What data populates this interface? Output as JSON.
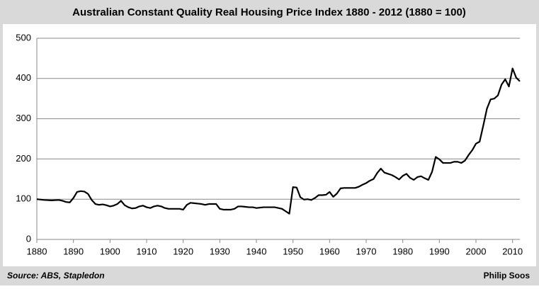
{
  "chart_data": {
    "type": "line",
    "title": "Australian Constant Quality Real Housing Price Index 1880 - 2012 (1880 = 100)",
    "source": "Source: ABS, Stapledon",
    "author": "Philip Soos",
    "xlim": [
      1880,
      2012
    ],
    "xticks": [
      1880,
      1890,
      1900,
      1910,
      1920,
      1930,
      1940,
      1950,
      1960,
      1970,
      1980,
      1990,
      2000,
      2010
    ],
    "ylim": [
      0,
      500
    ],
    "yticks": [
      0,
      100,
      200,
      300,
      400,
      500
    ],
    "grid": true,
    "x": [
      1880,
      1882,
      1884,
      1886,
      1887,
      1888,
      1889,
      1890,
      1891,
      1892,
      1893,
      1894,
      1895,
      1896,
      1897,
      1898,
      1899,
      1900,
      1901,
      1902,
      1903,
      1904,
      1905,
      1906,
      1907,
      1908,
      1909,
      1910,
      1911,
      1912,
      1913,
      1914,
      1915,
      1916,
      1917,
      1918,
      1919,
      1920,
      1921,
      1922,
      1923,
      1924,
      1925,
      1926,
      1927,
      1928,
      1929,
      1930,
      1931,
      1932,
      1933,
      1934,
      1935,
      1936,
      1937,
      1938,
      1939,
      1940,
      1941,
      1942,
      1943,
      1944,
      1945,
      1946,
      1947,
      1948,
      1949,
      1950,
      1951,
      1952,
      1953,
      1954,
      1955,
      1956,
      1957,
      1958,
      1959,
      1960,
      1961,
      1962,
      1963,
      1964,
      1965,
      1966,
      1967,
      1968,
      1969,
      1970,
      1971,
      1972,
      1973,
      1974,
      1975,
      1976,
      1977,
      1978,
      1979,
      1980,
      1981,
      1982,
      1983,
      1984,
      1985,
      1986,
      1987,
      1988,
      1989,
      1990,
      1991,
      1992,
      1993,
      1994,
      1995,
      1996,
      1997,
      1998,
      1999,
      2000,
      2001,
      2002,
      2003,
      2004,
      2005,
      2006,
      2007,
      2008,
      2009,
      2010,
      2011,
      2012
    ],
    "series": [
      {
        "name": "Index",
        "color": "#000000",
        "values": [
          100,
          98,
          97,
          98,
          96,
          93,
          92,
          103,
          118,
          120,
          119,
          113,
          98,
          88,
          86,
          87,
          85,
          82,
          84,
          88,
          96,
          85,
          80,
          77,
          78,
          82,
          84,
          80,
          78,
          82,
          84,
          82,
          78,
          76,
          76,
          76,
          76,
          74,
          86,
          91,
          90,
          89,
          88,
          86,
          88,
          88,
          88,
          76,
          74,
          74,
          74,
          76,
          82,
          82,
          81,
          80,
          80,
          78,
          79,
          80,
          80,
          80,
          80,
          78,
          76,
          70,
          64,
          130,
          129,
          105,
          99,
          100,
          98,
          103,
          110,
          110,
          111,
          118,
          106,
          114,
          127,
          128,
          128,
          128,
          128,
          131,
          136,
          140,
          146,
          150,
          165,
          176,
          166,
          163,
          160,
          155,
          149,
          158,
          163,
          153,
          148,
          155,
          157,
          152,
          148,
          168,
          205,
          199,
          190,
          190,
          190,
          193,
          193,
          190,
          196,
          210,
          222,
          238,
          243,
          283,
          325,
          348,
          350,
          358,
          385,
          398,
          380,
          425,
          402,
          393
        ]
      }
    ]
  }
}
